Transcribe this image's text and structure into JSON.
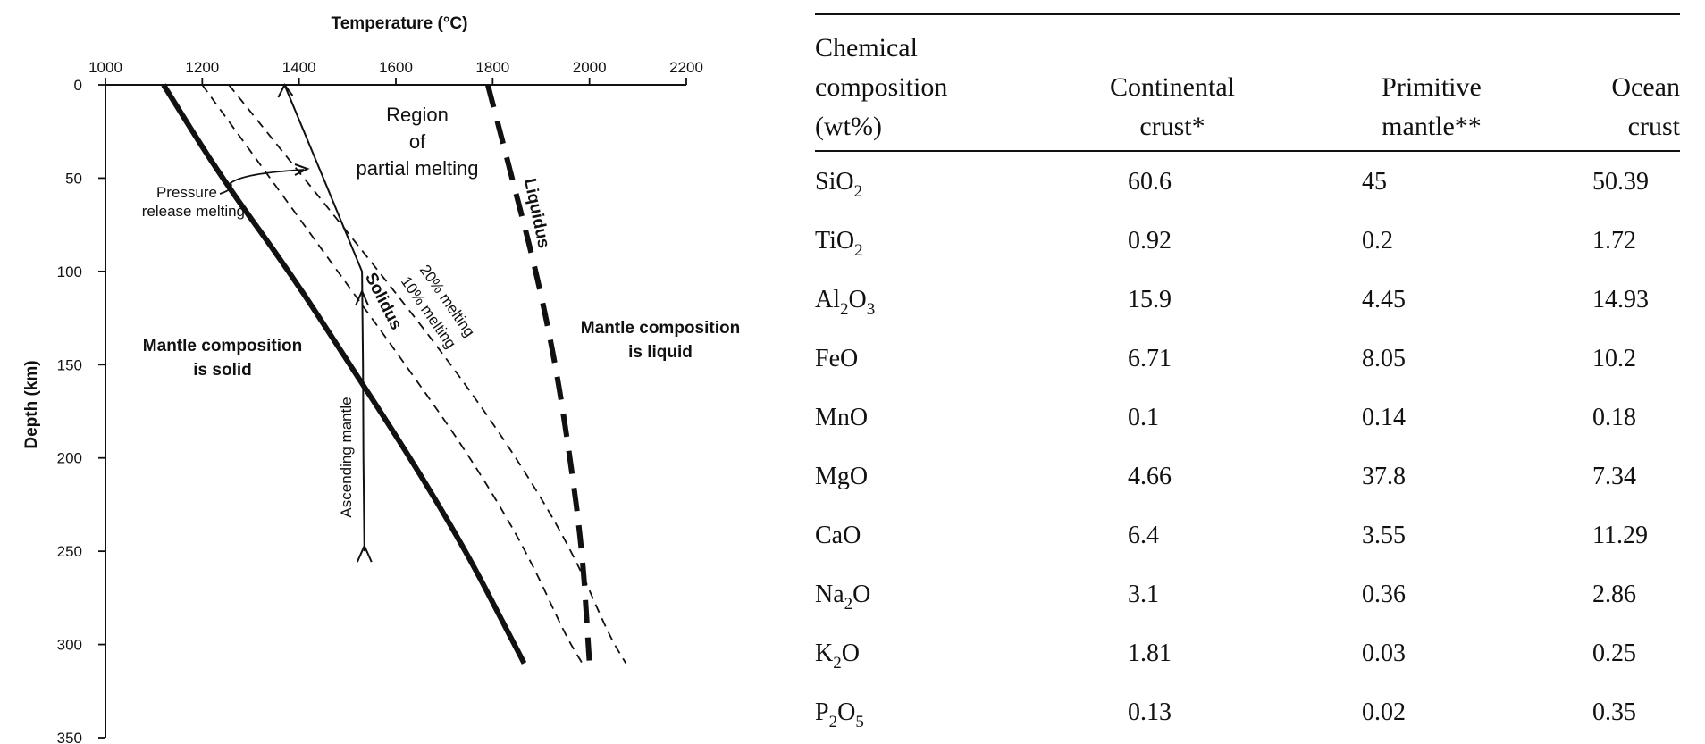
{
  "chart_data": {
    "type": "line",
    "title": "",
    "xlabel": "Temperature (°C)",
    "ylabel": "Depth (km)",
    "xlim": [
      1000,
      2200
    ],
    "ylim": [
      0,
      350
    ],
    "x_ticks": [
      "1000",
      "1200",
      "1400",
      "1600",
      "1800",
      "2000",
      "2200"
    ],
    "y_ticks": [
      "0",
      "50",
      "100",
      "150",
      "200",
      "250",
      "300",
      "350"
    ],
    "series": [
      {
        "name": "Solidus",
        "style": "solid-thick",
        "points": [
          [
            1120,
            0
          ],
          [
            1240,
            50
          ],
          [
            1380,
            100
          ],
          [
            1505,
            150
          ],
          [
            1630,
            200
          ],
          [
            1745,
            250
          ],
          [
            1825,
            290
          ],
          [
            1865,
            310
          ]
        ]
      },
      {
        "name": "10% melting",
        "style": "dashed-thin",
        "points": [
          [
            1200,
            0
          ],
          [
            1340,
            50
          ],
          [
            1480,
            100
          ],
          [
            1620,
            150
          ],
          [
            1755,
            200
          ],
          [
            1870,
            250
          ],
          [
            1950,
            295
          ],
          [
            1985,
            310
          ]
        ]
      },
      {
        "name": "20% melting",
        "style": "dashed-thin",
        "points": [
          [
            1255,
            0
          ],
          [
            1410,
            50
          ],
          [
            1565,
            100
          ],
          [
            1715,
            150
          ],
          [
            1850,
            200
          ],
          [
            1965,
            250
          ],
          [
            2040,
            295
          ],
          [
            2075,
            310
          ]
        ]
      },
      {
        "name": "Liquidus",
        "style": "dashed-thick",
        "points": [
          [
            1790,
            0
          ],
          [
            1840,
            50
          ],
          [
            1890,
            100
          ],
          [
            1930,
            150
          ],
          [
            1960,
            200
          ],
          [
            1985,
            250
          ],
          [
            1995,
            290
          ],
          [
            2000,
            310
          ]
        ]
      },
      {
        "name": "Ascending mantle",
        "style": "arrow-path",
        "points": [
          [
            1535,
            250
          ],
          [
            1533,
            200
          ],
          [
            1532,
            150
          ],
          [
            1530,
            100
          ],
          [
            1450,
            50
          ],
          [
            1370,
            0
          ]
        ]
      }
    ],
    "annotations": [
      "Region",
      "of",
      "partial melting",
      "Pressure",
      "release melting",
      "Mantle composition",
      "is solid",
      "Mantle composition",
      "is liquid",
      "Ascending mantle",
      "Solidus",
      "Liquidus",
      "20% melting",
      "10% melting"
    ]
  },
  "table": {
    "header": {
      "col0": [
        "Chemical",
        "composition",
        "(wt%)"
      ],
      "col1": [
        "Continental",
        "crust*"
      ],
      "col2": [
        "Primitive",
        "mantle**"
      ],
      "col3": [
        "Ocean",
        "crust"
      ]
    },
    "rows": [
      {
        "pre": "SiO",
        "sub": "2",
        "mid": "",
        "sub2": "",
        "post": "",
        "values": [
          "60.6",
          "45",
          "50.39"
        ]
      },
      {
        "pre": "TiO",
        "sub": "2",
        "mid": "",
        "sub2": "",
        "post": "",
        "values": [
          "0.92",
          "0.2",
          "1.72"
        ]
      },
      {
        "pre": "Al",
        "sub": "2",
        "mid": "O",
        "sub2": "3",
        "post": "",
        "values": [
          "15.9",
          "4.45",
          "14.93"
        ]
      },
      {
        "pre": "FeO",
        "sub": "",
        "mid": "",
        "sub2": "",
        "post": "",
        "values": [
          "6.71",
          "8.05",
          "10.2"
        ]
      },
      {
        "pre": "MnO",
        "sub": "",
        "mid": "",
        "sub2": "",
        "post": "",
        "values": [
          "0.1",
          "0.14",
          "0.18"
        ]
      },
      {
        "pre": "MgO",
        "sub": "",
        "mid": "",
        "sub2": "",
        "post": "",
        "values": [
          "4.66",
          "37.8",
          "7.34"
        ]
      },
      {
        "pre": "CaO",
        "sub": "",
        "mid": "",
        "sub2": "",
        "post": "",
        "values": [
          "6.4",
          "3.55",
          "11.29"
        ]
      },
      {
        "pre": "Na",
        "sub": "2",
        "mid": "O",
        "sub2": "",
        "post": "",
        "values": [
          "3.1",
          "0.36",
          "2.86"
        ]
      },
      {
        "pre": "K",
        "sub": "2",
        "mid": "O",
        "sub2": "",
        "post": "",
        "values": [
          "1.81",
          "0.03",
          "0.25"
        ]
      },
      {
        "pre": "P",
        "sub": "2",
        "mid": "O",
        "sub2": "5",
        "post": "",
        "values": [
          "0.13",
          "0.02",
          "0.35"
        ]
      }
    ]
  }
}
